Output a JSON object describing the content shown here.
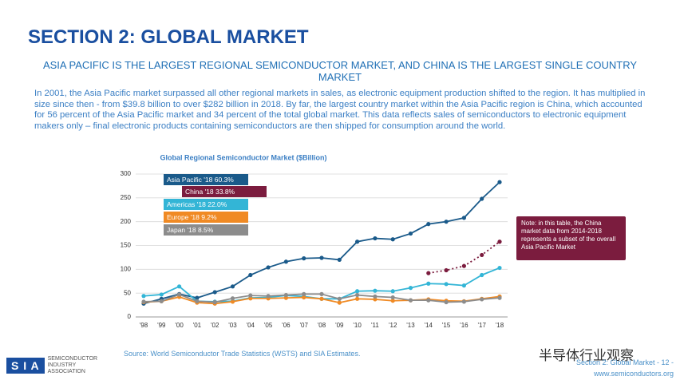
{
  "slide": {
    "title": "SECTION 2: GLOBAL MARKET",
    "subtitle": "ASIA PACIFIC IS THE LARGEST REGIONAL SEMICONDUCTOR MARKET, AND CHINA IS THE LARGEST SINGLE COUNTRY MARKET",
    "paragraph": "In 2001, the Asia Pacific market surpassed all other regional markets in sales, as electronic equipment production shifted to the region.  It has multiplied in size since then - from $39.8 billion to over $282 billion in 2018.  By far, the largest country market within the Asia Pacific region is China, which accounted for 56 percent of the Asia Pacific market and 34 percent of the total global market.  This data reflects sales of semiconductors to electronic equipment makers only – final electronic products containing semiconductors are then shipped for consumption around the world.",
    "source": "Source: World Semiconductor Trade Statistics (WSTS) and SIA Estimates.",
    "footer": "Section 2: Global Market - 12 -",
    "website": "www.semiconductors.org",
    "logo_letters": "S I A",
    "logo_text": "SEMICONDUCTOR INDUSTRY ASSOCIATION",
    "watermark": "半导体行业观察"
  },
  "chart_data": {
    "type": "line",
    "title": "Global Regional Semiconductor Market ($Billion)",
    "annotation": "Note: in this table, the China market data from 2014-2018 represents a subset of the overall Asia Pacific Market",
    "categories": [
      "'98",
      "'99",
      "'00",
      "'01",
      "'02",
      "'03",
      "'04",
      "'05",
      "'06",
      "'07",
      "'08",
      "'09",
      "'10",
      "'11",
      "'12",
      "'13",
      "'14",
      "'15",
      "'16",
      "'17",
      "'18"
    ],
    "ylim": [
      0,
      300
    ],
    "yticks": [
      0,
      50,
      100,
      150,
      200,
      250,
      300
    ],
    "grid": true,
    "series": [
      {
        "name": "Asia Pacific '18  60.3%",
        "color": "#1a5a8a",
        "style": "solid",
        "values": [
          28,
          38,
          48,
          40,
          52,
          64,
          88,
          104,
          116,
          123,
          124,
          120,
          158,
          165,
          163,
          175,
          195,
          200,
          208,
          248,
          283
        ]
      },
      {
        "name": "China '18  33.8%",
        "color": "#7b1c3e",
        "style": "dotted",
        "values": [
          null,
          null,
          null,
          null,
          null,
          null,
          null,
          null,
          null,
          null,
          null,
          null,
          null,
          null,
          null,
          null,
          92,
          98,
          107,
          130,
          158
        ]
      },
      {
        "name": "Americas '18  22.0%",
        "color": "#33b5d6",
        "style": "solid",
        "values": [
          44,
          47,
          64,
          33,
          32,
          33,
          40,
          41,
          45,
          43,
          38,
          38,
          54,
          55,
          54,
          61,
          70,
          69,
          66,
          88,
          103
        ]
      },
      {
        "name": "Europe '18  9.2%",
        "color": "#f08a24",
        "style": "solid",
        "values": [
          31,
          33,
          42,
          30,
          28,
          32,
          39,
          39,
          40,
          41,
          38,
          30,
          38,
          37,
          34,
          35,
          37,
          34,
          33,
          38,
          43
        ]
      },
      {
        "name": "Japan '18  8.5%",
        "color": "#8c8c8c",
        "style": "solid",
        "values": [
          32,
          33,
          47,
          33,
          31,
          39,
          45,
          44,
          46,
          48,
          48,
          38,
          46,
          43,
          41,
          35,
          35,
          31,
          32,
          37,
          40
        ]
      }
    ]
  }
}
